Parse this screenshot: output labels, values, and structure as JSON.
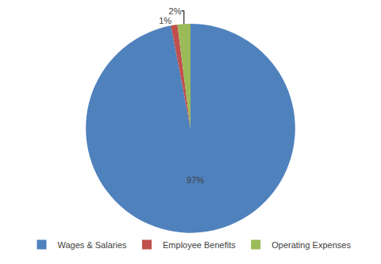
{
  "chart_data": {
    "type": "pie",
    "categories": [
      "Wages & Salaries",
      "Employee Benefits",
      "Operating Expenses"
    ],
    "values": [
      97,
      1,
      2
    ],
    "value_labels": [
      "97%",
      "1%",
      "2%"
    ],
    "colors": [
      "#4f81bd",
      "#c0504d",
      "#9bbb59"
    ],
    "data_labels": true,
    "legend": "bottom"
  }
}
